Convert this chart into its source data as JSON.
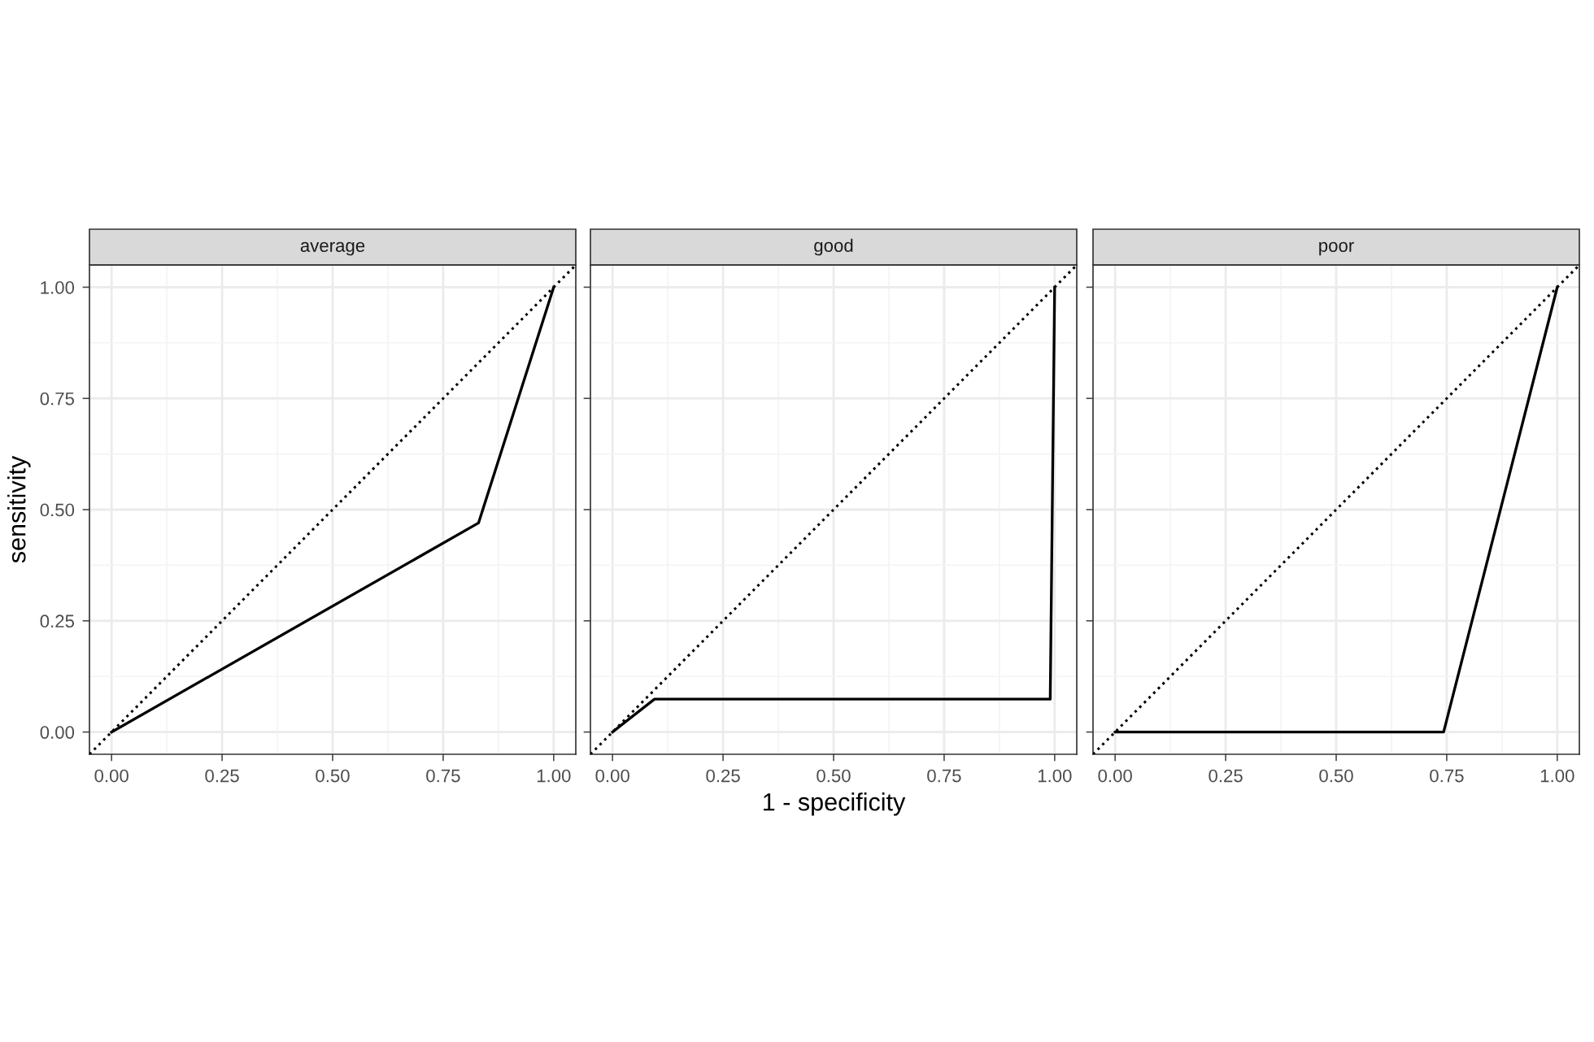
{
  "chart_data": [
    {
      "type": "line",
      "title": "average",
      "ylabel": "sensitivity",
      "xlim": [
        -0.05,
        1.05
      ],
      "ylim": [
        -0.05,
        1.05
      ],
      "xticks": [
        {
          "value": 0,
          "label": "0.00"
        },
        {
          "value": 0.25,
          "label": "0.25"
        },
        {
          "value": 0.5,
          "label": "0.50"
        },
        {
          "value": 0.75,
          "label": "0.75"
        },
        {
          "value": 1,
          "label": "1.00"
        }
      ],
      "yticks": [
        {
          "value": 0,
          "label": "0.00"
        },
        {
          "value": 0.25,
          "label": "0.25"
        },
        {
          "value": 0.5,
          "label": "0.50"
        },
        {
          "value": 0.75,
          "label": "0.75"
        },
        {
          "value": 1,
          "label": "1.00"
        }
      ],
      "grid": true,
      "marker": "none",
      "series": [
        {
          "color": "#000000",
          "x": [
            -0.05,
            1.05
          ],
          "values": [
            -0.05,
            1.05
          ],
          "line_style": "dotted"
        },
        {
          "color": "#000000",
          "x": [
            0,
            0.83,
            1
          ],
          "values": [
            0,
            0.47,
            1
          ],
          "line_style": "solid"
        }
      ]
    },
    {
      "type": "line",
      "title": "good",
      "xlabel": "1 - specificity",
      "tick_labels": "x",
      "xlim": [
        -0.05,
        1.05
      ],
      "ylim": [
        -0.05,
        1.05
      ],
      "xticks": [
        {
          "value": 0,
          "label": "0.00"
        },
        {
          "value": 0.25,
          "label": "0.25"
        },
        {
          "value": 0.5,
          "label": "0.50"
        },
        {
          "value": 0.75,
          "label": "0.75"
        },
        {
          "value": 1,
          "label": "1.00"
        }
      ],
      "yticks": [
        {
          "value": 0,
          "label": null
        },
        {
          "value": 0.25,
          "label": null
        },
        {
          "value": 0.5,
          "label": null
        },
        {
          "value": 0.75,
          "label": null
        },
        {
          "value": 1,
          "label": null
        }
      ],
      "grid": true,
      "marker": "none",
      "series": [
        {
          "color": "#000000",
          "x": [
            -0.05,
            1.05
          ],
          "values": [
            -0.05,
            1.05
          ],
          "line_style": "dotted"
        },
        {
          "color": "#000000",
          "x": [
            0,
            0.095,
            0.99,
            1
          ],
          "values": [
            0,
            0.074,
            0.074,
            1
          ],
          "line_style": "solid"
        }
      ]
    },
    {
      "type": "line",
      "title": "poor",
      "tick_labels": "x",
      "xlim": [
        -0.05,
        1.05
      ],
      "ylim": [
        -0.05,
        1.05
      ],
      "xticks": [
        {
          "value": 0,
          "label": "0.00"
        },
        {
          "value": 0.25,
          "label": "0.25"
        },
        {
          "value": 0.5,
          "label": "0.50"
        },
        {
          "value": 0.75,
          "label": "0.75"
        },
        {
          "value": 1,
          "label": "1.00"
        }
      ],
      "yticks": [
        {
          "value": 0,
          "label": null
        },
        {
          "value": 0.25,
          "label": null
        },
        {
          "value": 0.5,
          "label": null
        },
        {
          "value": 0.75,
          "label": null
        },
        {
          "value": 1,
          "label": null
        }
      ],
      "grid": true,
      "marker": "none",
      "series": [
        {
          "color": "#000000",
          "x": [
            -0.05,
            1.05
          ],
          "values": [
            -0.05,
            1.05
          ],
          "line_style": "dotted"
        },
        {
          "color": "#000000",
          "x": [
            0,
            0.743,
            1
          ],
          "values": [
            0,
            0,
            1
          ],
          "line_style": "solid"
        }
      ]
    }
  ]
}
